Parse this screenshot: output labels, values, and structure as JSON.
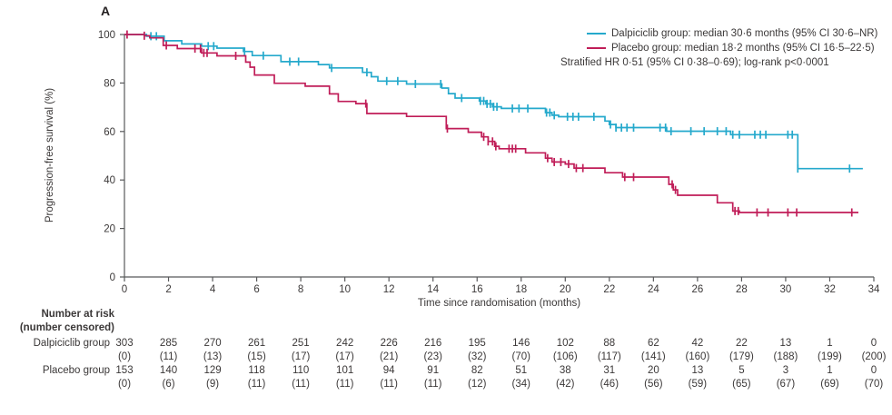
{
  "panel_label": "A",
  "colors": {
    "dalpiciclib": "#25a9cc",
    "placebo": "#c01d58",
    "axis": "#58595b",
    "text": "#3b3838"
  },
  "legend": {
    "items": [
      {
        "label": "Dalpiciclib group: median 30·6 months (95% CI 30·6–NR)",
        "color_key": "dalpiciclib"
      },
      {
        "label": "Placebo group: median 18·2 months (95% CI 16·5–22·5)",
        "color_key": "placebo"
      }
    ],
    "note": "Stratified HR 0·51 (95% CI 0·38–0·69); log-rank p<0·0001"
  },
  "chart_data": {
    "type": "line",
    "subtype": "kaplan-meier-step",
    "title": "",
    "xlabel": "Time since randomisation (months)",
    "ylabel": "Progression-free survival (%)",
    "xlim": [
      0,
      34
    ],
    "ylim": [
      0,
      100
    ],
    "xticks": [
      0,
      2,
      4,
      6,
      8,
      10,
      12,
      14,
      16,
      18,
      20,
      22,
      24,
      26,
      28,
      30,
      32,
      34
    ],
    "yticks": [
      0,
      20,
      40,
      60,
      80,
      100
    ],
    "grid": false,
    "legend_position": "top-right",
    "series": [
      {
        "name": "Dalpiciclib group",
        "color": "#25a9cc",
        "end_time": 33.5,
        "steps": [
          [
            0,
            100
          ],
          [
            1.0,
            99.3
          ],
          [
            1.8,
            97.4
          ],
          [
            2.6,
            96.1
          ],
          [
            3.5,
            95.2
          ],
          [
            4.2,
            94.4
          ],
          [
            5.4,
            93.0
          ],
          [
            5.8,
            91.3
          ],
          [
            7.1,
            88.8
          ],
          [
            8.8,
            87.6
          ],
          [
            9.3,
            86.2
          ],
          [
            10.8,
            84.4
          ],
          [
            11.2,
            82.6
          ],
          [
            11.5,
            80.8
          ],
          [
            12.8,
            79.6
          ],
          [
            14.4,
            77.9
          ],
          [
            14.7,
            75.6
          ],
          [
            15.0,
            73.8
          ],
          [
            16.1,
            72.6
          ],
          [
            16.4,
            71.4
          ],
          [
            16.7,
            70.2
          ],
          [
            17.1,
            69.5
          ],
          [
            19.1,
            67.8
          ],
          [
            19.4,
            66.7
          ],
          [
            19.7,
            66.1
          ],
          [
            21.8,
            64.3
          ],
          [
            22.0,
            62.9
          ],
          [
            22.3,
            61.6
          ],
          [
            24.6,
            60.1
          ],
          [
            27.5,
            58.7
          ],
          [
            30.55,
            44.7
          ]
        ],
        "censor_times": [
          1.2,
          1.45,
          3.8,
          4.05,
          5.45,
          6.3,
          7.5,
          7.9,
          9.4,
          11.0,
          11.9,
          12.4,
          13.2,
          14.35,
          15.3,
          16.15,
          16.3,
          16.45,
          16.6,
          16.75,
          16.9,
          17.6,
          17.9,
          18.3,
          19.15,
          19.3,
          19.5,
          20.1,
          20.35,
          20.6,
          21.3,
          22.05,
          22.3,
          22.55,
          22.8,
          23.1,
          24.3,
          24.55,
          24.8,
          25.7,
          26.3,
          26.9,
          27.3,
          27.6,
          27.9,
          28.6,
          28.85,
          29.1,
          30.1,
          30.3,
          30.55,
          32.9
        ]
      },
      {
        "name": "Placebo group",
        "color": "#c01d58",
        "end_time": 33.3,
        "steps": [
          [
            0,
            100
          ],
          [
            0.9,
            99.5
          ],
          [
            1.15,
            98.6
          ],
          [
            1.76,
            95.5
          ],
          [
            2.4,
            94.2
          ],
          [
            3.5,
            92.4
          ],
          [
            4.2,
            91.2
          ],
          [
            5.5,
            88.6
          ],
          [
            5.7,
            86.5
          ],
          [
            5.9,
            83.3
          ],
          [
            6.8,
            79.9
          ],
          [
            8.2,
            78.7
          ],
          [
            9.3,
            75.5
          ],
          [
            9.7,
            72.4
          ],
          [
            10.5,
            71.5
          ],
          [
            11.0,
            67.4
          ],
          [
            12.8,
            66.2
          ],
          [
            14.6,
            61.2
          ],
          [
            15.6,
            59.7
          ],
          [
            16.2,
            57.8
          ],
          [
            16.5,
            55.9
          ],
          [
            16.8,
            53.9
          ],
          [
            17.0,
            52.9
          ],
          [
            18.2,
            51.2
          ],
          [
            19.1,
            49.0
          ],
          [
            19.4,
            47.4
          ],
          [
            20.0,
            46.6
          ],
          [
            20.4,
            44.9
          ],
          [
            21.8,
            43.0
          ],
          [
            22.6,
            41.2
          ],
          [
            24.7,
            38.2
          ],
          [
            24.9,
            35.9
          ],
          [
            25.1,
            33.7
          ],
          [
            26.9,
            30.6
          ],
          [
            27.6,
            27.2
          ],
          [
            27.9,
            26.6
          ]
        ],
        "censor_times": [
          0.12,
          0.9,
          1.9,
          3.2,
          3.45,
          3.6,
          3.75,
          5.05,
          10.95,
          14.65,
          16.3,
          16.5,
          16.7,
          16.85,
          17.45,
          17.6,
          17.75,
          19.2,
          19.5,
          19.8,
          20.15,
          20.5,
          20.8,
          22.7,
          23.1,
          24.85,
          25.0,
          27.7,
          27.85,
          28.7,
          29.2,
          30.1,
          30.5,
          33.0
        ]
      }
    ]
  },
  "risk_table": {
    "header_line1": "Number at risk",
    "header_line2": "(number censored)",
    "timepoints": [
      0,
      2,
      4,
      6,
      8,
      10,
      12,
      14,
      16,
      18,
      20,
      22,
      24,
      26,
      28,
      30,
      32,
      34
    ],
    "rows": [
      {
        "label": "Dalpiciclib group",
        "counts": [
          "303",
          "285",
          "270",
          "261",
          "251",
          "242",
          "226",
          "216",
          "195",
          "146",
          "102",
          "88",
          "62",
          "42",
          "22",
          "13",
          "1",
          "0"
        ],
        "censored": [
          "(0)",
          "(11)",
          "(13)",
          "(15)",
          "(17)",
          "(17)",
          "(21)",
          "(23)",
          "(32)",
          "(70)",
          "(106)",
          "(117)",
          "(141)",
          "(160)",
          "(179)",
          "(188)",
          "(199)",
          "(200)"
        ]
      },
      {
        "label": "Placebo group",
        "counts": [
          "153",
          "140",
          "129",
          "118",
          "110",
          "101",
          "94",
          "91",
          "82",
          "51",
          "38",
          "31",
          "20",
          "13",
          "5",
          "3",
          "1",
          "0"
        ],
        "censored": [
          "(0)",
          "(6)",
          "(9)",
          "(11)",
          "(11)",
          "(11)",
          "(11)",
          "(11)",
          "(12)",
          "(34)",
          "(42)",
          "(46)",
          "(56)",
          "(59)",
          "(65)",
          "(67)",
          "(69)",
          "(70)"
        ]
      }
    ]
  }
}
